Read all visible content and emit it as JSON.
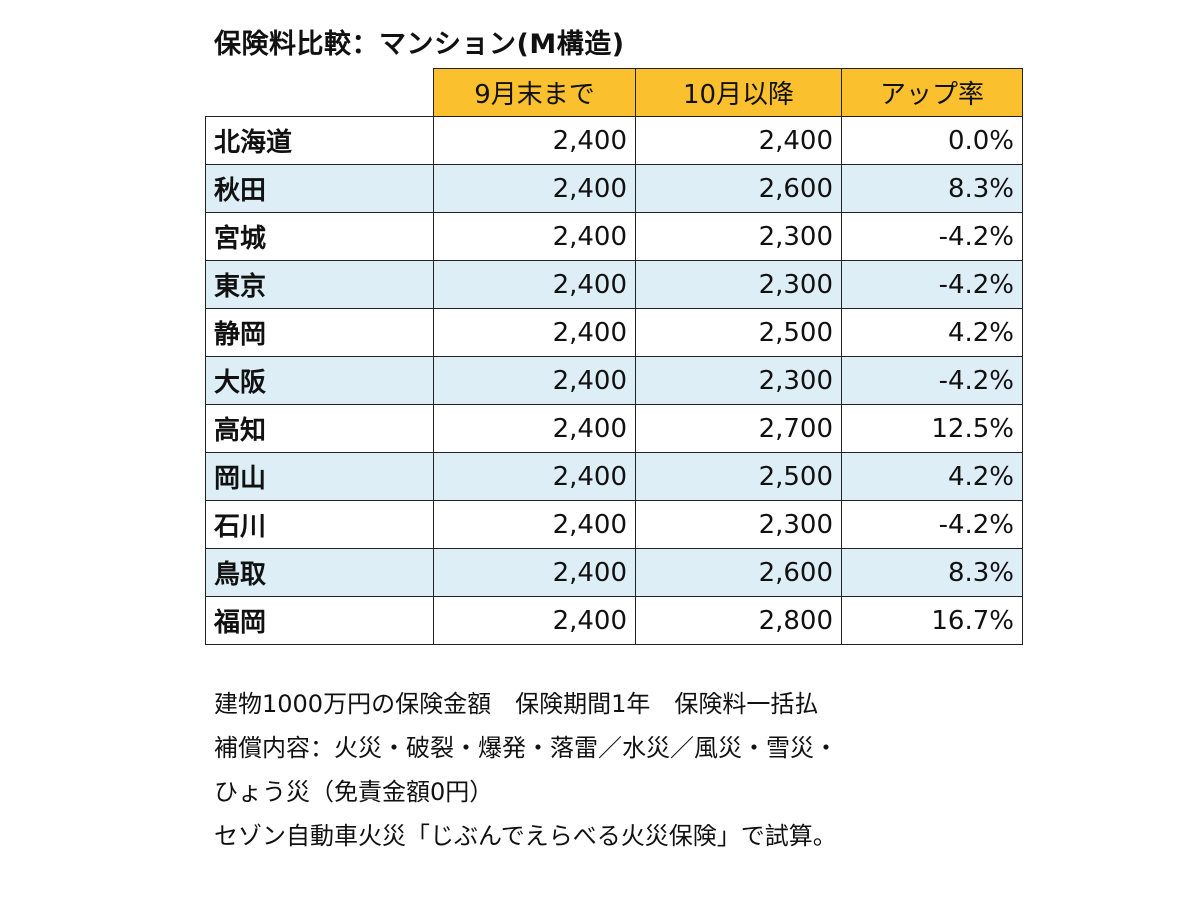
{
  "title": "保険料比較：マンション(M構造)",
  "chart_data": {
    "type": "table",
    "columns": [
      "",
      "9月末まで",
      "10月以降",
      "アップ率"
    ],
    "rows": [
      {
        "region": "北海道",
        "before": "2,400",
        "after": "2,400",
        "rate": "0.0%"
      },
      {
        "region": "秋田",
        "before": "2,400",
        "after": "2,600",
        "rate": "8.3%"
      },
      {
        "region": "宮城",
        "before": "2,400",
        "after": "2,300",
        "rate": "-4.2%"
      },
      {
        "region": "東京",
        "before": "2,400",
        "after": "2,300",
        "rate": "-4.2%"
      },
      {
        "region": "静岡",
        "before": "2,400",
        "after": "2,500",
        "rate": "4.2%"
      },
      {
        "region": "大阪",
        "before": "2,400",
        "after": "2,300",
        "rate": "-4.2%"
      },
      {
        "region": "高知",
        "before": "2,400",
        "after": "2,700",
        "rate": "12.5%"
      },
      {
        "region": "岡山",
        "before": "2,400",
        "after": "2,500",
        "rate": "4.2%"
      },
      {
        "region": "石川",
        "before": "2,400",
        "after": "2,300",
        "rate": "-4.2%"
      },
      {
        "region": "鳥取",
        "before": "2,400",
        "after": "2,600",
        "rate": "8.3%"
      },
      {
        "region": "福岡",
        "before": "2,400",
        "after": "2,800",
        "rate": "16.7%"
      }
    ]
  },
  "notes": [
    "建物1000万円の保険金額　保険期間1年　保険料一括払",
    "補償内容：火災・破裂・爆発・落雷／水災／風災・雪災・",
    "ひょう災（免責金額0円）",
    "セゾン自動車火災「じぶんでえらべる火災保険」で試算。"
  ],
  "colors": {
    "header_bg": "#fbc02d",
    "row_shade": "#ddeef6",
    "border": "#222222"
  }
}
